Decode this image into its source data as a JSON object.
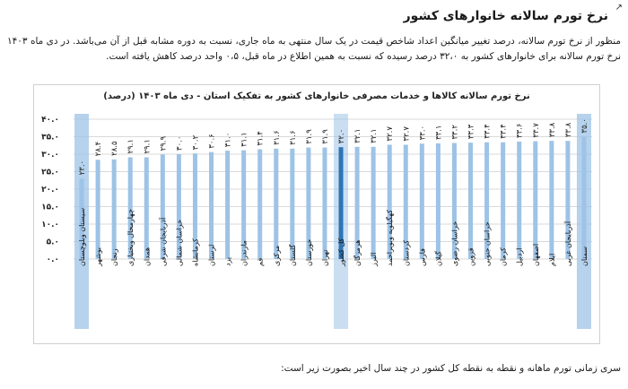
{
  "marker": "↗",
  "heading": "نرخ تورم سالانه خانوارهای کشور",
  "paragraph": "منظور از نرخ تورم سالانه، درصد تغییر میانگین اعداد شاخص قیمت در یک سال منتهی به ماه جاری، نسبت به دوره مشابه قبل از آن می‌باشد. در دی ماه ۱۴۰۳ نرخ تورم سالانه برای خانوارهای کشور به ۳۲،۰ درصد رسیده که نسبت به همین اطلاع در ماه قبل، ۰،۵ واحد درصد کاهش یافته است.",
  "bottom_text": "سری زمانی تورم ماهانه و نقطه به نقطه کل کشور در چند سال اخیر بصورت زیر است:",
  "colors": {
    "bar": "#9dc3e6",
    "bar_highlight": "#2e75b6",
    "label_highlight_bg": "#9dc3e6",
    "grid": "#d9d9d9"
  },
  "chart_data": {
    "type": "bar",
    "title": "نرخ تورم سالانه کالاها و خدمات مصرفی خانوارهای کشور به تفکیک استان - دی ماه ۱۴۰۳ (درصد)",
    "ylim": [
      0,
      40
    ],
    "yticks": [
      "۰.۰",
      "۵.۰",
      "۱۰.۰",
      "۱۵.۰",
      "۲۰.۰",
      "۲۵.۰",
      "۳۰.۰",
      "۳۵.۰",
      "۴۰.۰"
    ],
    "grid": true,
    "categories": [
      "سیستان وبلوچستان",
      "بوشهر",
      "زنجان",
      "چهارمحال وبختیاری",
      "همدان",
      "آذربایجان شرقی",
      "خراسان شمالی",
      "کرمانشاه",
      "لرستان",
      "یزد",
      "مازندران",
      "قم",
      "مرکزی",
      "گلستان",
      "خوزستان",
      "تهران",
      "کل کشور",
      "هرمزگان",
      "البرز",
      "کهگیلویه وبویراحمد",
      "کردستان",
      "فارس",
      "گیلان",
      "خراسان رضوی",
      "قزوین",
      "خراسان جنوبی",
      "کرمان",
      "اردبیل",
      "اصفهان",
      "ایلام",
      "آذربایجان غربی",
      "سمنان"
    ],
    "values": [
      23.0,
      28.4,
      28.5,
      29.1,
      29.1,
      29.9,
      30.0,
      30.2,
      30.6,
      31.0,
      31.1,
      31.4,
      31.6,
      31.6,
      31.9,
      31.9,
      32.0,
      32.1,
      32.1,
      32.7,
      32.7,
      33.0,
      33.1,
      33.2,
      33.3,
      33.4,
      33.4,
      33.6,
      33.7,
      33.8,
      33.8,
      35.0
    ],
    "value_labels": [
      "۲۳.۰",
      "۲۸.۴",
      "۲۸.۵",
      "۲۹.۱",
      "۲۹.۱",
      "۲۹.۹",
      "۳۰.۰",
      "۳۰.۲",
      "۳۰.۶",
      "۳۱.۰",
      "۳۱.۱",
      "۳۱.۴",
      "۳۱.۶",
      "۳۱.۶",
      "۳۱.۹",
      "۳۱.۹",
      "۳۲.۰",
      "۳۲.۱",
      "۳۲.۱",
      "۳۲.۷",
      "۳۲.۷",
      "۳۳.۰",
      "۳۳.۱",
      "۳۳.۲",
      "۳۳.۳",
      "۳۳.۴",
      "۳۳.۴",
      "۳۳.۶",
      "۳۳.۷",
      "۳۳.۸",
      "۳۳.۸",
      "۳۵.۰"
    ],
    "highlight_dark": [
      "کل کشور"
    ],
    "highlight_boxed": [
      "سیستان وبلوچستان",
      "سمنان"
    ]
  }
}
